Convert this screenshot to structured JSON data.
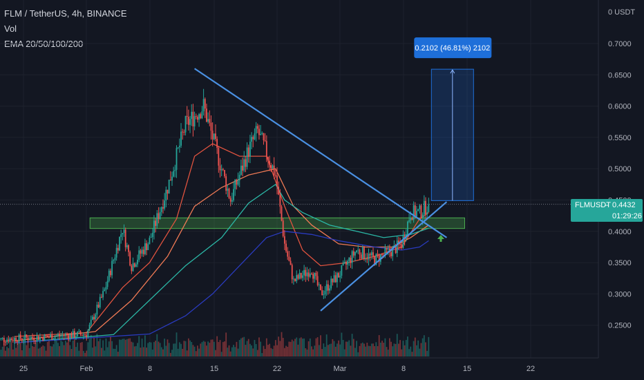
{
  "header": {
    "symbol_line": "FLM / TetherUS, 4h, BINANCE",
    "volume_label": "Vol",
    "ema_label": "EMA 20/50/100/200"
  },
  "price_axis": {
    "currency": "0 USDT",
    "ticks": [
      "0.7000",
      "0.6500",
      "0.6000",
      "0.5500",
      "0.5000",
      "0.4500",
      "0.4000",
      "0.3500",
      "0.3000",
      "0.2500"
    ]
  },
  "time_axis": {
    "ticks": [
      "25",
      "Feb",
      "8",
      "15",
      "22",
      "Mar",
      "8",
      "15",
      "22"
    ]
  },
  "last_price": {
    "symbol": "FLMUSDT",
    "value": "0.4432",
    "countdown": "01:29:26"
  },
  "measure_label": "0.2102 (46.81%) 2102",
  "colors": {
    "background": "#131722",
    "up": "#26a69a",
    "down": "#ef5350",
    "trendline": "#4a90e2",
    "zone": "#4caf50",
    "ema20": "#e0533f",
    "ema50": "#f07a55",
    "ema100": "#2bb7a6",
    "ema200": "#2a3bbf",
    "measure": "#1e6fd9"
  },
  "chart_data": {
    "type": "candlestick",
    "price_range": [
      0.2,
      0.72
    ],
    "last_price": 0.4432,
    "support_zone": [
      0.4045,
      0.4215
    ],
    "target_box": {
      "low": 0.449,
      "high": 0.659,
      "change": "0.2102",
      "percent": "46.81%"
    },
    "anchors": [
      {
        "date": "Jan 22",
        "p": 0.227
      },
      {
        "date": "Jan 28",
        "p": 0.232
      },
      {
        "date": "Feb 1",
        "p": 0.236
      },
      {
        "date": "Feb 3",
        "p": 0.305
      },
      {
        "date": "Feb 5",
        "p": 0.405
      },
      {
        "date": "Feb 6",
        "p": 0.345
      },
      {
        "date": "Feb 8",
        "p": 0.385
      },
      {
        "date": "Feb 10",
        "p": 0.47
      },
      {
        "date": "Feb 12",
        "p": 0.57
      },
      {
        "date": "Feb 14",
        "p": 0.6
      },
      {
        "date": "Feb 15",
        "p": 0.55
      },
      {
        "date": "Feb 17",
        "p": 0.45
      },
      {
        "date": "Feb 19",
        "p": 0.53
      },
      {
        "date": "Feb 20",
        "p": 0.56
      },
      {
        "date": "Feb 22",
        "p": 0.49
      },
      {
        "date": "Feb 23",
        "p": 0.38
      },
      {
        "date": "Feb 24",
        "p": 0.32
      },
      {
        "date": "Feb 26",
        "p": 0.34
      },
      {
        "date": "Feb 27",
        "p": 0.3
      },
      {
        "date": "Mar 1",
        "p": 0.33
      },
      {
        "date": "Mar 3",
        "p": 0.37
      },
      {
        "date": "Mar 5",
        "p": 0.355
      },
      {
        "date": "Mar 7",
        "p": 0.37
      },
      {
        "date": "Mar 8",
        "p": 0.38
      },
      {
        "date": "Mar 9",
        "p": 0.43
      },
      {
        "date": "Mar 10",
        "p": 0.43
      },
      {
        "date": "Mar 11",
        "p": 0.4432
      }
    ],
    "ema": [
      {
        "name": "EMA 20",
        "color": "#e0533f",
        "points": [
          [
            "Jan 24",
            0.232
          ],
          [
            "Feb 1",
            0.238
          ],
          [
            "Feb 5",
            0.31
          ],
          [
            "Feb 8",
            0.35
          ],
          [
            "Feb 11",
            0.42
          ],
          [
            "Feb 13",
            0.52
          ],
          [
            "Feb 15",
            0.54
          ],
          [
            "Feb 18",
            0.52
          ],
          [
            "Feb 21",
            0.52
          ],
          [
            "Feb 23",
            0.44
          ],
          [
            "Feb 25",
            0.37
          ],
          [
            "Feb 27",
            0.345
          ],
          [
            "Mar 2",
            0.35
          ],
          [
            "Mar 5",
            0.36
          ],
          [
            "Mar 8",
            0.375
          ],
          [
            "Mar 10",
            0.42
          ],
          [
            "Mar 11",
            0.43
          ]
        ]
      },
      {
        "name": "EMA 50",
        "color": "#f07a55",
        "points": [
          [
            "Jan 24",
            0.225
          ],
          [
            "Feb 2",
            0.24
          ],
          [
            "Feb 6",
            0.29
          ],
          [
            "Feb 10",
            0.36
          ],
          [
            "Feb 13",
            0.44
          ],
          [
            "Feb 16",
            0.47
          ],
          [
            "Feb 19",
            0.49
          ],
          [
            "Feb 22",
            0.5
          ],
          [
            "Feb 24",
            0.44
          ],
          [
            "Feb 26",
            0.41
          ],
          [
            "Mar 1",
            0.38
          ],
          [
            "Mar 4",
            0.375
          ],
          [
            "Mar 7",
            0.375
          ],
          [
            "Mar 9",
            0.39
          ],
          [
            "Mar 11",
            0.41
          ]
        ]
      },
      {
        "name": "EMA 100",
        "color": "#2bb7a6",
        "points": [
          [
            "Jan 24",
            0.222
          ],
          [
            "Feb 4",
            0.235
          ],
          [
            "Feb 8",
            0.29
          ],
          [
            "Feb 12",
            0.345
          ],
          [
            "Feb 16",
            0.39
          ],
          [
            "Feb 19",
            0.445
          ],
          [
            "Feb 22",
            0.475
          ],
          [
            "Feb 23",
            0.45
          ],
          [
            "Feb 25",
            0.43
          ],
          [
            "Feb 28",
            0.41
          ],
          [
            "Mar 3",
            0.4
          ],
          [
            "Mar 6",
            0.39
          ],
          [
            "Mar 9",
            0.395
          ],
          [
            "Mar 11",
            0.405
          ]
        ]
      },
      {
        "name": "EMA 200",
        "color": "#2a3bbf",
        "points": [
          [
            "Jan 24",
            0.222
          ],
          [
            "Feb 8",
            0.236
          ],
          [
            "Feb 12",
            0.265
          ],
          [
            "Feb 15",
            0.3
          ],
          [
            "Feb 18",
            0.345
          ],
          [
            "Feb 21",
            0.39
          ],
          [
            "Feb 23",
            0.4
          ],
          [
            "Feb 26",
            0.395
          ],
          [
            "Mar 1",
            0.385
          ],
          [
            "Mar 5",
            0.375
          ],
          [
            "Mar 8",
            0.37
          ],
          [
            "Mar 10",
            0.375
          ],
          [
            "Mar 11",
            0.385
          ]
        ]
      }
    ],
    "trendlines": [
      {
        "name": "descending",
        "from": [
          "Feb 13",
          0.66
        ],
        "to": [
          "Mar 13",
          0.39
        ]
      },
      {
        "name": "ascending",
        "from": [
          "Feb 27",
          0.273
        ],
        "to": [
          "Mar 13",
          0.447
        ]
      }
    ]
  }
}
